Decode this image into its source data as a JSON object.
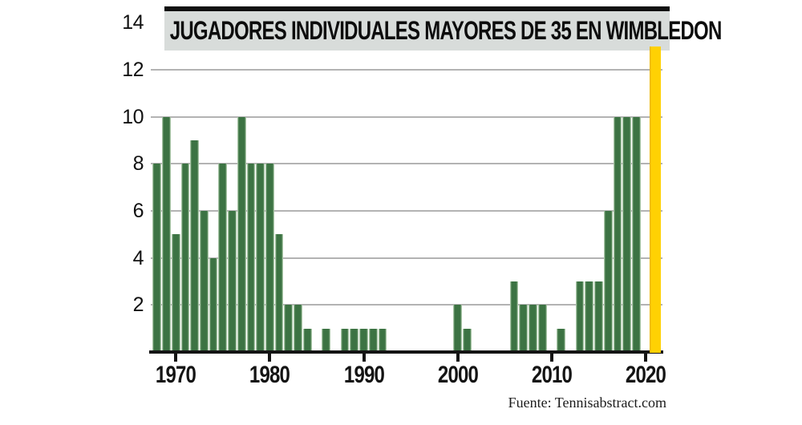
{
  "title": "JUGADORES INDIVIDUALES MAYORES DE 35 EN WIMBLEDON",
  "source": {
    "label": "Fuente: Tennisabstract.com"
  },
  "colors": {
    "bar": "#3C7343",
    "bar_edge": "#A6C4A4",
    "highlight_bar": "#FFD103",
    "gridline": "#B3B3B3",
    "axis": "#141414",
    "title_background": "#D8DCDA",
    "title_top_bar": "#101010"
  },
  "chart_data": {
    "type": "bar",
    "title": "JUGADORES INDIVIDUALES MAYORES DE 35 EN WIMBLEDON",
    "xlabel": "",
    "ylabel": "",
    "x": [
      1968,
      1969,
      1970,
      1971,
      1972,
      1973,
      1974,
      1975,
      1976,
      1977,
      1978,
      1979,
      1980,
      1981,
      1982,
      1983,
      1984,
      1985,
      1986,
      1987,
      1988,
      1989,
      1990,
      1991,
      1992,
      1993,
      1994,
      1995,
      1996,
      1997,
      1998,
      1999,
      2000,
      2001,
      2002,
      2003,
      2004,
      2005,
      2006,
      2007,
      2008,
      2009,
      2010,
      2011,
      2012,
      2013,
      2014,
      2015,
      2016,
      2017,
      2018,
      2019,
      2020,
      2021
    ],
    "values": [
      8,
      10,
      5,
      8,
      9,
      6,
      4,
      8,
      6,
      10,
      8,
      8,
      8,
      5,
      2,
      2,
      1,
      0,
      1,
      0,
      1,
      1,
      1,
      1,
      1,
      0,
      0,
      0,
      0,
      0,
      0,
      0,
      2,
      1,
      0,
      0,
      0,
      0,
      3,
      2,
      2,
      2,
      0,
      1,
      0,
      3,
      3,
      3,
      6,
      10,
      10,
      10,
      0,
      13
    ],
    "highlight_year": 2021,
    "highlight_value": 13,
    "ylim": [
      0,
      14
    ],
    "yticks": [
      2,
      4,
      6,
      8,
      10,
      12,
      14
    ],
    "grid_yticks": [
      2,
      4,
      6,
      8,
      10,
      12
    ],
    "xticks": [
      1970,
      1980,
      1990,
      2000,
      2010,
      2020
    ],
    "grid": true,
    "legend": "none",
    "source": "Fuente: Tennisabstract.com"
  }
}
